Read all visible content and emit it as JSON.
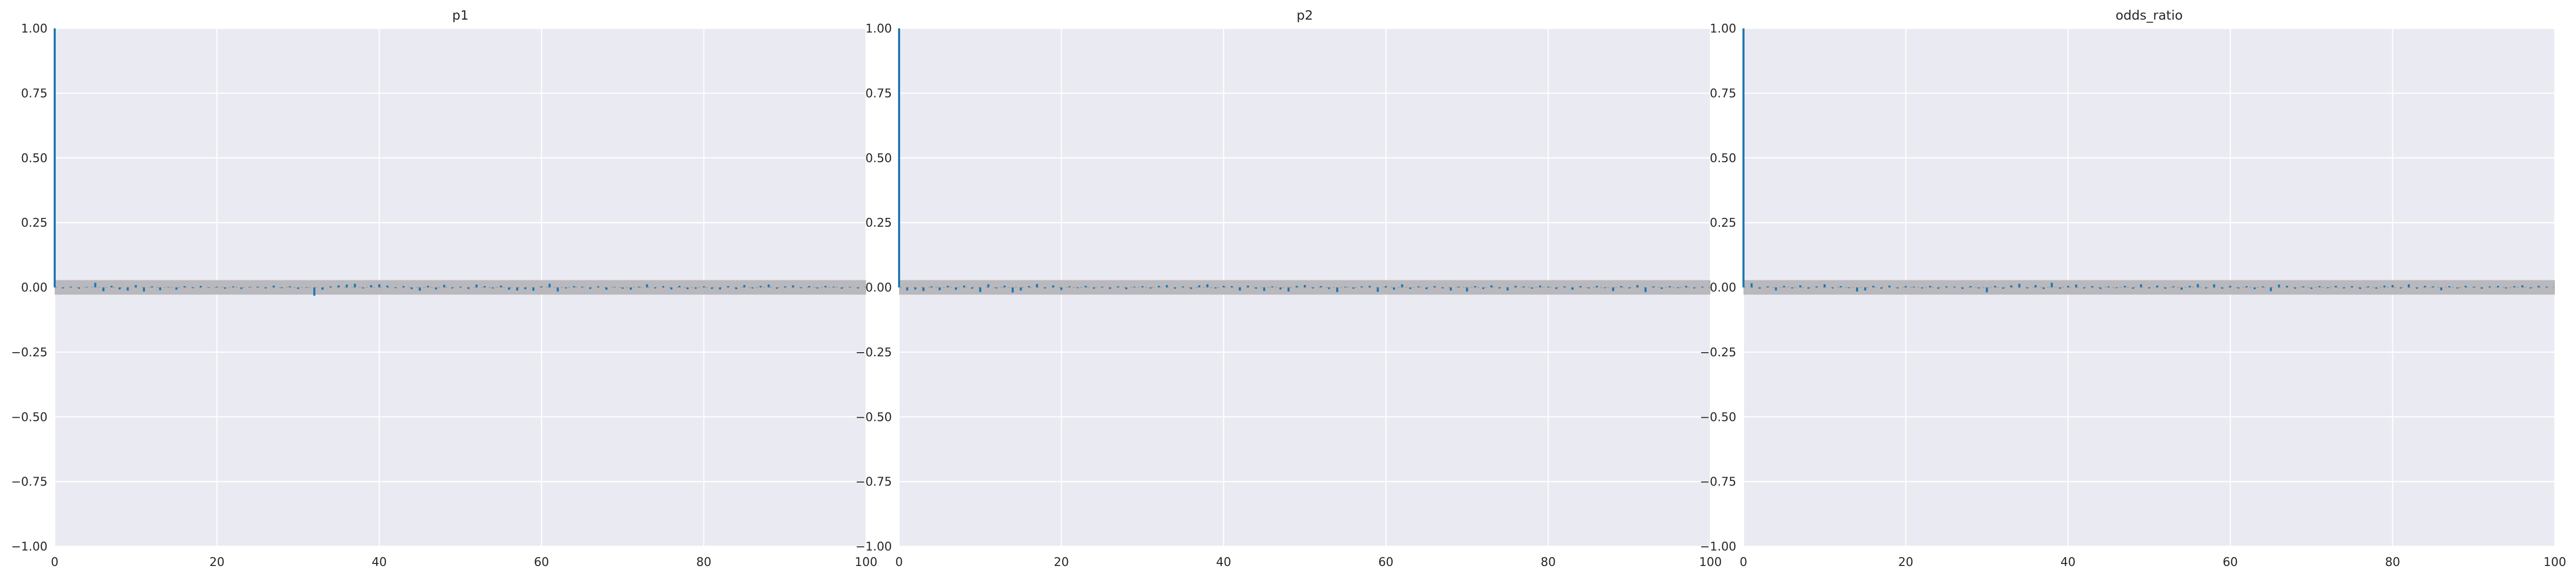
{
  "chart_data": [
    {
      "type": "bar",
      "title": "p1",
      "xlim": [
        0,
        100
      ],
      "ylim": [
        -1,
        1
      ],
      "xticks": [
        0,
        20,
        40,
        60,
        80,
        100
      ],
      "xtick_labels": [
        "0",
        "20",
        "40",
        "60",
        "80",
        "100"
      ],
      "yticks": [
        1,
        0.75,
        0.5,
        0.25,
        0,
        -0.25,
        -0.5,
        -0.75,
        -1
      ],
      "ytick_labels": [
        "1.00",
        "0.75",
        "0.50",
        "0.25",
        "0.00",
        "−0.25",
        "−0.50",
        "−0.75",
        "−1.00"
      ],
      "grid": true,
      "band": 0.028,
      "x": [
        0,
        1,
        2,
        3,
        4,
        5,
        6,
        7,
        8,
        9,
        10,
        11,
        12,
        13,
        14,
        15,
        16,
        17,
        18,
        19,
        20,
        21,
        22,
        23,
        24,
        25,
        26,
        27,
        28,
        29,
        30,
        31,
        32,
        33,
        34,
        35,
        36,
        37,
        38,
        39,
        40,
        41,
        42,
        43,
        44,
        45,
        46,
        47,
        48,
        49,
        50,
        51,
        52,
        53,
        54,
        55,
        56,
        57,
        58,
        59,
        60,
        61,
        62,
        63,
        64,
        65,
        66,
        67,
        68,
        69,
        70,
        71,
        72,
        73,
        74,
        75,
        76,
        77,
        78,
        79,
        80,
        81,
        82,
        83,
        84,
        85,
        86,
        87,
        88,
        89,
        90,
        91,
        92,
        93,
        94,
        95,
        96,
        97,
        98,
        99
      ],
      "values": [
        1.0,
        -0.004,
        0.003,
        -0.005,
        0.002,
        0.018,
        -0.015,
        0.006,
        -0.008,
        -0.012,
        0.009,
        -0.016,
        0.004,
        -0.011,
        0.002,
        -0.009,
        0.005,
        -0.003,
        0.006,
        -0.002,
        0.003,
        -0.005,
        0.004,
        -0.006,
        0.002,
        0.003,
        -0.004,
        0.007,
        -0.003,
        0.004,
        -0.006,
        -0.002,
        -0.032,
        -0.009,
        0.004,
        0.008,
        0.011,
        0.014,
        -0.004,
        0.009,
        0.012,
        0.007,
        -0.003,
        0.005,
        -0.007,
        -0.013,
        0.006,
        -0.008,
        0.01,
        -0.004,
        0.003,
        -0.006,
        0.011,
        0.005,
        -0.004,
        0.007,
        -0.009,
        -0.012,
        -0.007,
        -0.013,
        0.004,
        0.014,
        -0.016,
        -0.004,
        0.005,
        0.003,
        -0.006,
        0.004,
        -0.009,
        0.002,
        -0.005,
        -0.009,
        0.003,
        0.012,
        -0.004,
        0.005,
        -0.008,
        0.006,
        -0.007,
        -0.005,
        0.004,
        -0.006,
        -0.008,
        0.005,
        -0.007,
        0.009,
        -0.004,
        0.006,
        0.011,
        -0.005,
        0.004,
        0.008,
        -0.003,
        0.005,
        -0.004,
        0.006,
        0.003,
        -0.005,
        0.002,
        -0.004
      ]
    },
    {
      "type": "bar",
      "title": "p2",
      "xlim": [
        0,
        100
      ],
      "ylim": [
        -1,
        1
      ],
      "xticks": [
        0,
        20,
        40,
        60,
        80,
        100
      ],
      "xtick_labels": [
        "0",
        "20",
        "40",
        "60",
        "80",
        "100"
      ],
      "yticks": [
        1,
        0.75,
        0.5,
        0.25,
        0,
        -0.25,
        -0.5,
        -0.75,
        -1
      ],
      "ytick_labels": [
        "1.00",
        "0.75",
        "0.50",
        "0.25",
        "0.00",
        "−0.25",
        "−0.50",
        "−0.75",
        "−1.00"
      ],
      "grid": true,
      "band": 0.028,
      "x": [
        0,
        1,
        2,
        3,
        4,
        5,
        6,
        7,
        8,
        9,
        10,
        11,
        12,
        13,
        14,
        15,
        16,
        17,
        18,
        19,
        20,
        21,
        22,
        23,
        24,
        25,
        26,
        27,
        28,
        29,
        30,
        31,
        32,
        33,
        34,
        35,
        36,
        37,
        38,
        39,
        40,
        41,
        42,
        43,
        44,
        45,
        46,
        47,
        48,
        49,
        50,
        51,
        52,
        53,
        54,
        55,
        56,
        57,
        58,
        59,
        60,
        61,
        62,
        63,
        64,
        65,
        66,
        67,
        68,
        69,
        70,
        71,
        72,
        73,
        74,
        75,
        76,
        77,
        78,
        79,
        80,
        81,
        82,
        83,
        84,
        85,
        86,
        87,
        88,
        89,
        90,
        91,
        92,
        93,
        94,
        95,
        96,
        97,
        98,
        99
      ],
      "values": [
        1.0,
        -0.012,
        -0.008,
        -0.014,
        0.004,
        -0.011,
        0.006,
        -0.009,
        0.007,
        -0.005,
        -0.018,
        0.012,
        -0.004,
        0.007,
        -0.02,
        -0.012,
        0.005,
        0.013,
        -0.004,
        0.008,
        -0.01,
        0.004,
        -0.003,
        0.006,
        -0.005,
        0.003,
        -0.006,
        0.004,
        -0.007,
        0.003,
        0.005,
        -0.004,
        0.006,
        0.009,
        -0.005,
        0.004,
        -0.006,
        0.008,
        0.012,
        -0.004,
        0.006,
        0.005,
        -0.012,
        0.007,
        -0.005,
        -0.014,
        0.004,
        -0.008,
        -0.016,
        0.006,
        0.009,
        -0.004,
        0.005,
        -0.006,
        -0.018,
        0.003,
        -0.005,
        0.004,
        0.006,
        -0.017,
        0.005,
        -0.009,
        0.012,
        -0.006,
        0.004,
        -0.007,
        0.005,
        -0.004,
        -0.012,
        0.003,
        -0.016,
        0.005,
        -0.006,
        0.008,
        -0.004,
        -0.012,
        0.006,
        0.004,
        -0.005,
        0.007,
        0.003,
        -0.006,
        0.004,
        -0.009,
        0.005,
        -0.004,
        0.006,
        -0.003,
        -0.014,
        0.005,
        -0.004,
        0.009,
        -0.018,
        0.004,
        -0.006,
        0.005,
        -0.003,
        0.006,
        -0.004,
        0.003
      ]
    },
    {
      "type": "bar",
      "title": "odds_ratio",
      "xlim": [
        0,
        100
      ],
      "ylim": [
        -1,
        1
      ],
      "xticks": [
        0,
        20,
        40,
        60,
        80,
        100
      ],
      "xtick_labels": [
        "0",
        "20",
        "40",
        "60",
        "80",
        "100"
      ],
      "yticks": [
        1,
        0.75,
        0.5,
        0.25,
        0,
        -0.25,
        -0.5,
        -0.75,
        -1
      ],
      "ytick_labels": [
        "1.00",
        "0.75",
        "0.50",
        "0.25",
        "0.00",
        "−0.25",
        "−0.50",
        "−0.75",
        "−1.00"
      ],
      "grid": true,
      "band": 0.028,
      "x": [
        0,
        1,
        2,
        3,
        4,
        5,
        6,
        7,
        8,
        9,
        10,
        11,
        12,
        13,
        14,
        15,
        16,
        17,
        18,
        19,
        20,
        21,
        22,
        23,
        24,
        25,
        26,
        27,
        28,
        29,
        30,
        31,
        32,
        33,
        34,
        35,
        36,
        37,
        38,
        39,
        40,
        41,
        42,
        43,
        44,
        45,
        46,
        47,
        48,
        49,
        50,
        51,
        52,
        53,
        54,
        55,
        56,
        57,
        58,
        59,
        60,
        61,
        62,
        63,
        64,
        65,
        66,
        67,
        68,
        69,
        70,
        71,
        72,
        73,
        74,
        75,
        76,
        77,
        78,
        79,
        80,
        81,
        82,
        83,
        84,
        85,
        86,
        87,
        88,
        89,
        90,
        91,
        92,
        93,
        94,
        95,
        96,
        97,
        98,
        99
      ],
      "values": [
        1.0,
        0.016,
        -0.005,
        0.004,
        -0.012,
        0.006,
        -0.004,
        0.008,
        -0.005,
        0.004,
        0.012,
        -0.004,
        0.005,
        -0.003,
        -0.016,
        -0.012,
        0.006,
        -0.005,
        0.007,
        -0.004,
        0.005,
        0.003,
        -0.004,
        0.006,
        -0.005,
        0.004,
        0.003,
        -0.006,
        0.005,
        -0.004,
        -0.019,
        0.006,
        -0.005,
        0.008,
        0.014,
        -0.004,
        0.009,
        -0.006,
        0.018,
        -0.005,
        0.006,
        0.011,
        -0.004,
        0.005,
        -0.006,
        0.004,
        -0.003,
        0.006,
        -0.005,
        0.012,
        -0.004,
        0.007,
        -0.005,
        0.004,
        -0.009,
        0.006,
        0.013,
        -0.004,
        0.012,
        -0.005,
        0.006,
        -0.004,
        0.005,
        -0.007,
        0.004,
        -0.015,
        0.011,
        0.006,
        -0.005,
        0.004,
        -0.006,
        0.005,
        -0.003,
        0.006,
        -0.004,
        0.005,
        -0.006,
        0.004,
        -0.005,
        0.007,
        0.009,
        -0.004,
        0.012,
        -0.005,
        0.006,
        0.004,
        -0.011,
        0.005,
        -0.004,
        0.006,
        0.003,
        -0.005,
        0.004,
        0.006,
        -0.004,
        0.005,
        0.008,
        -0.004,
        0.006,
        0.003
      ]
    }
  ],
  "colors": {
    "bar": "#1f77b4",
    "band": "#b9b9bd",
    "zero_line": "#a8a8a8",
    "plot_background": "#eaeaf2",
    "grid": "#ffffff",
    "text": "#262626"
  }
}
